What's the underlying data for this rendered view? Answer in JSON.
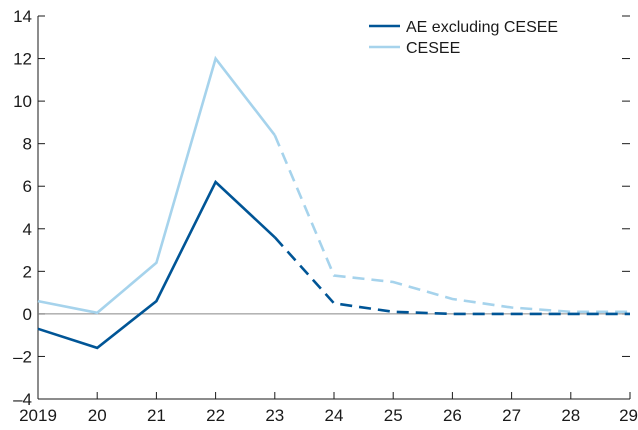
{
  "chart_data": {
    "type": "line",
    "x_tick_labels": [
      "2019",
      "20",
      "21",
      "22",
      "23",
      "24",
      "25",
      "26",
      "27",
      "28",
      "29"
    ],
    "y_tick_labels": [
      "–4",
      "–2",
      "0",
      "2",
      "4",
      "6",
      "8",
      "10",
      "12",
      "14"
    ],
    "y_ticks": [
      -4,
      -2,
      0,
      2,
      4,
      6,
      8,
      10,
      12,
      14
    ],
    "ylim": [
      -4,
      14
    ],
    "xlim": [
      2019,
      2029
    ],
    "x": [
      2019,
      2020,
      2021,
      2022,
      2023,
      2024,
      2025,
      2026,
      2027,
      2028,
      2029
    ],
    "projection_start": 2023,
    "series": [
      {
        "name": "AE excluding CESEE",
        "color": "#005596",
        "values": [
          -0.7,
          -1.6,
          0.6,
          6.2,
          3.6,
          0.5,
          0.1,
          0.0,
          0.0,
          0.0,
          0.0
        ]
      },
      {
        "name": "CESEE",
        "color": "#a6d3ec",
        "values": [
          0.6,
          0.05,
          2.4,
          12.0,
          8.4,
          1.8,
          1.5,
          0.7,
          0.3,
          0.1,
          0.1
        ]
      }
    ],
    "zero_line": true,
    "legend_position": "top-right",
    "grid": false
  }
}
